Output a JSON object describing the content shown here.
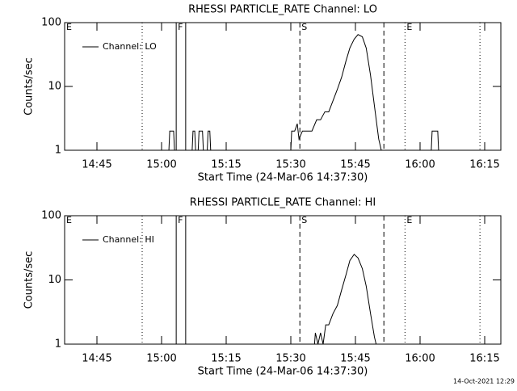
{
  "chart_data": [
    {
      "type": "line",
      "title": "RHESSI PARTICLE_RATE Channel: LO",
      "xlabel": "Start Time (24-Mar-06 14:37:30)",
      "ylabel": "Counts/sec",
      "xlim": [
        0,
        101.25
      ],
      "xticks": [
        {
          "value": 7.5,
          "label": "14:45"
        },
        {
          "value": 22.5,
          "label": "15:00"
        },
        {
          "value": 37.5,
          "label": "15:15"
        },
        {
          "value": 52.5,
          "label": "15:30"
        },
        {
          "value": 67.5,
          "label": "15:45"
        },
        {
          "value": 82.5,
          "label": "16:00"
        },
        {
          "value": 97.5,
          "label": "16:15"
        }
      ],
      "ylim": [
        1,
        100
      ],
      "yticks": [
        1,
        10,
        100
      ],
      "log_y": true,
      "legend": "upper left",
      "markers": [
        {
          "x": 18,
          "style": "dotted"
        },
        {
          "x": 25.9,
          "style": "solid"
        },
        {
          "x": 28.1,
          "style": "solid"
        },
        {
          "x": 54.6,
          "style": "dashed"
        },
        {
          "x": 74.1,
          "style": "dashed"
        },
        {
          "x": 79,
          "style": "dotted"
        },
        {
          "x": 96.4,
          "style": "dotted"
        }
      ],
      "marker_labels": [
        {
          "text": "E",
          "x": 0
        },
        {
          "text": "F",
          "x": 25.9
        },
        {
          "text": "S",
          "x": 54.6
        },
        {
          "text": "E",
          "x": 79
        }
      ],
      "series": [
        {
          "name": "Channel: LO",
          "color": "#000000",
          "x": [
            0,
            24.2,
            24.4,
            25.3,
            25.5,
            29.6,
            29.8,
            30.2,
            30.4,
            31.0,
            31.2,
            32.0,
            32.2,
            33.1,
            33.3,
            33.7,
            33.9,
            52.5,
            52.7,
            53.4,
            54.0,
            54.4,
            55.2,
            56.3,
            57.4,
            58.5,
            59.4,
            60.4,
            61.3,
            62.3,
            63.3,
            64.3,
            65.3,
            66.2,
            67.2,
            68.1,
            69.1,
            70.0,
            71.0,
            71.9,
            72.9,
            73.5,
            85.1,
            85.3,
            86.6,
            86.8,
            101.25
          ],
          "values": [
            1,
            1,
            2,
            2,
            1,
            1,
            2,
            2,
            1,
            1,
            2,
            2,
            1,
            1,
            2,
            2,
            1,
            1,
            2,
            2,
            2.6,
            1.5,
            2,
            2,
            2,
            3,
            3,
            4,
            4,
            6,
            9,
            14,
            25,
            40,
            55,
            65,
            60,
            40,
            15,
            5,
            1.5,
            1,
            1,
            2,
            2,
            1,
            1
          ]
        }
      ]
    },
    {
      "type": "line",
      "title": "RHESSI PARTICLE_RATE Channel: HI",
      "xlabel": "Start Time (24-Mar-06 14:37:30)",
      "ylabel": "Counts/sec",
      "xlim": [
        0,
        101.25
      ],
      "xticks": [
        {
          "value": 7.5,
          "label": "14:45"
        },
        {
          "value": 22.5,
          "label": "15:00"
        },
        {
          "value": 37.5,
          "label": "15:15"
        },
        {
          "value": 52.5,
          "label": "15:30"
        },
        {
          "value": 67.5,
          "label": "15:45"
        },
        {
          "value": 82.5,
          "label": "16:00"
        },
        {
          "value": 97.5,
          "label": "16:15"
        }
      ],
      "ylim": [
        1,
        100
      ],
      "yticks": [
        1,
        10,
        100
      ],
      "log_y": true,
      "legend": "upper left",
      "markers": [
        {
          "x": 18,
          "style": "dotted"
        },
        {
          "x": 25.9,
          "style": "solid"
        },
        {
          "x": 28.1,
          "style": "solid"
        },
        {
          "x": 54.6,
          "style": "dashed"
        },
        {
          "x": 74.1,
          "style": "dashed"
        },
        {
          "x": 79,
          "style": "dotted"
        },
        {
          "x": 96.4,
          "style": "dotted"
        }
      ],
      "marker_labels": [
        {
          "text": "E",
          "x": 0
        },
        {
          "text": "F",
          "x": 25.9
        },
        {
          "text": "S",
          "x": 54.6
        },
        {
          "text": "E",
          "x": 79
        }
      ],
      "series": [
        {
          "name": "Channel: HI",
          "color": "#000000",
          "x": [
            0,
            58.0,
            58.2,
            58.8,
            59.4,
            60.0,
            60.6,
            61.3,
            62.3,
            63.3,
            64.3,
            65.3,
            66.2,
            67.2,
            68.1,
            69.1,
            70.0,
            71.0,
            71.9,
            72.3,
            101.25
          ],
          "values": [
            1,
            1,
            1.5,
            1,
            1.5,
            1,
            2,
            2,
            3,
            4,
            7,
            12,
            20,
            25,
            22,
            15,
            8,
            3,
            1.3,
            1,
            1
          ]
        }
      ]
    }
  ],
  "footer": "14-Oct-2021 12:29"
}
